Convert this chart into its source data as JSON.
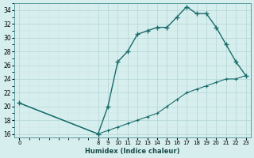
{
  "xlabel": "Humidex (Indice chaleur)",
  "bg_color": "#d6efee",
  "line_color": "#1a6b6b",
  "x_hours": [
    0,
    8,
    9,
    10,
    11,
    12,
    13,
    14,
    15,
    16,
    17,
    18,
    19,
    20,
    21,
    22,
    23
  ],
  "y_upper": [
    20.5,
    16.0,
    20.0,
    26.5,
    28.0,
    30.5,
    31.0,
    31.5,
    31.5,
    33.0,
    34.5,
    33.5,
    33.5,
    31.5,
    29.0,
    26.5,
    24.5
  ],
  "y_lower": [
    20.5,
    16.0,
    16.5,
    17.0,
    17.5,
    18.0,
    18.5,
    19.0,
    20.0,
    21.0,
    22.0,
    22.5,
    23.0,
    23.5,
    24.0,
    24.0,
    24.5
  ],
  "yticks": [
    16,
    18,
    20,
    22,
    24,
    26,
    28,
    30,
    32,
    34
  ],
  "xticks": [
    0,
    8,
    9,
    10,
    11,
    12,
    13,
    14,
    15,
    16,
    17,
    18,
    19,
    20,
    21,
    22,
    23
  ],
  "ylim": [
    15.5,
    35.0
  ],
  "xlim": [
    -0.5,
    23.5
  ]
}
